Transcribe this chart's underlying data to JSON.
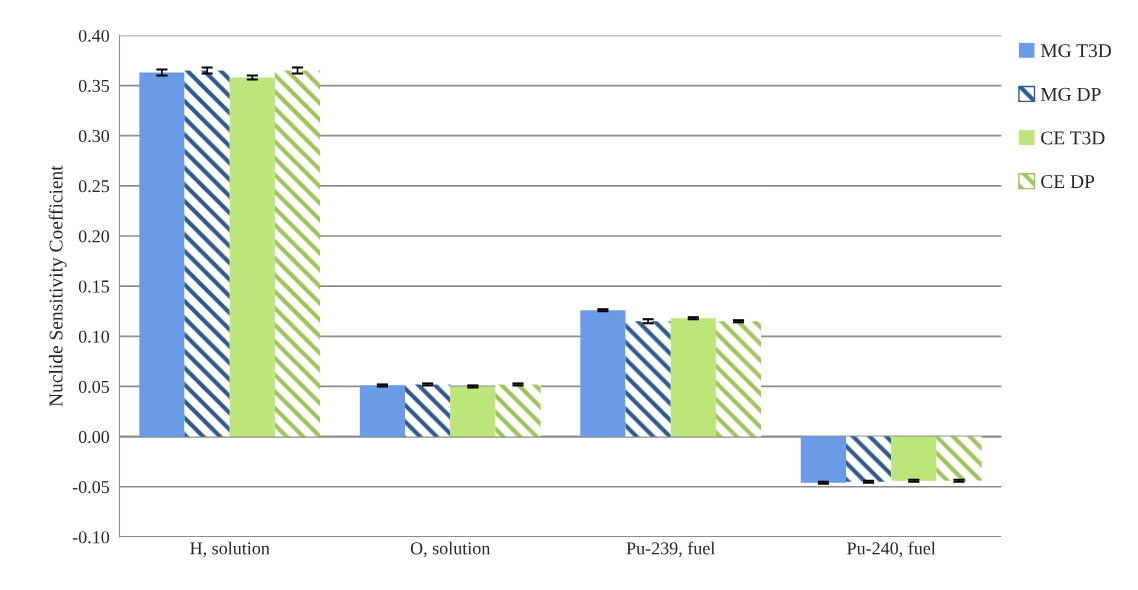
{
  "chart_data": {
    "type": "bar",
    "ylabel": "Nuclide Sensitivity Coefficient",
    "categories": [
      "H, solution",
      "O, solution",
      "Pu-239, fuel",
      "Pu-240, fuel"
    ],
    "series": [
      {
        "name": "MG T3D",
        "color": "#6a9be6",
        "values": [
          0.363,
          0.051,
          0.126,
          -0.046
        ],
        "errors": [
          0.003,
          0.001,
          0.001,
          0.001
        ]
      },
      {
        "name": "MG DP",
        "color": "#2f5a8f",
        "values": [
          0.365,
          0.052,
          0.115,
          -0.045
        ],
        "errors": [
          0.003,
          0.001,
          0.002,
          0.001
        ]
      },
      {
        "name": "CE T3D",
        "color": "#bde67a",
        "values": [
          0.358,
          0.05,
          0.118,
          -0.044
        ],
        "errors": [
          0.002,
          0.001,
          0.001,
          0.001
        ]
      },
      {
        "name": "CE DP",
        "color": "#9dc55a",
        "values": [
          0.365,
          0.052,
          0.115,
          -0.044
        ],
        "errors": [
          0.003,
          0.001,
          0.001,
          0.001
        ]
      }
    ],
    "ylim": [
      -0.1,
      0.4
    ],
    "yticks": [
      {
        "value": -0.1,
        "label": "-0.10"
      },
      {
        "value": -0.05,
        "label": "-0.05"
      },
      {
        "value": 0,
        "label": "0.00"
      },
      {
        "value": 0.05,
        "label": "0.05"
      },
      {
        "value": 0.1,
        "label": "0.10"
      },
      {
        "value": 0.15,
        "label": "0.15"
      },
      {
        "value": 0.2,
        "label": "0.20"
      },
      {
        "value": 0.25,
        "label": "0.25"
      },
      {
        "value": 0.3,
        "label": "0.30"
      },
      {
        "value": 0.35,
        "label": "0.35"
      },
      {
        "value": 0.4,
        "label": "0.40"
      }
    ],
    "grid": "y",
    "legend": "right"
  }
}
